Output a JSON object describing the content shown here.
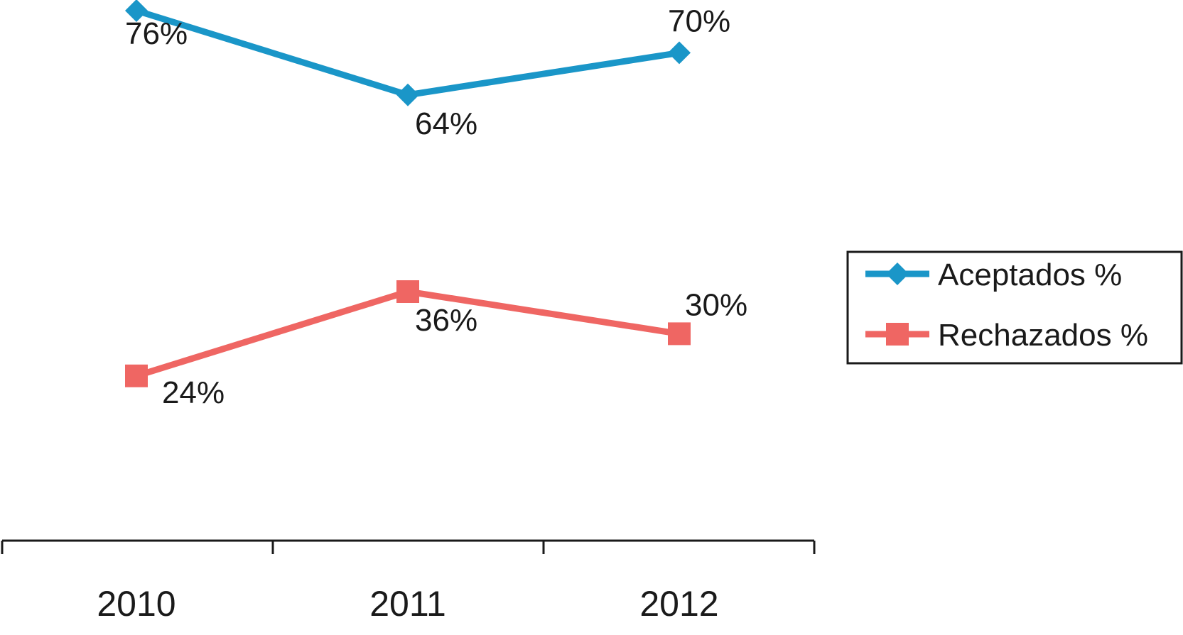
{
  "chart_data": {
    "type": "line",
    "title": "",
    "xlabel": "",
    "ylabel": "",
    "categories": [
      "2010",
      "2011",
      "2012"
    ],
    "ylim": [
      0,
      90
    ],
    "grid": false,
    "legend_position": "right",
    "series": [
      {
        "name": "Aceptados %",
        "values": [
          76,
          64,
          70
        ],
        "labels": [
          "76%",
          "64%",
          "70%"
        ],
        "color": "#1a96c8",
        "marker": "diamond"
      },
      {
        "name": "Rechazados %",
        "values": [
          24,
          36,
          30
        ],
        "labels": [
          "24%",
          "36%",
          "30%"
        ],
        "color": "#ef6663",
        "marker": "square"
      }
    ]
  }
}
